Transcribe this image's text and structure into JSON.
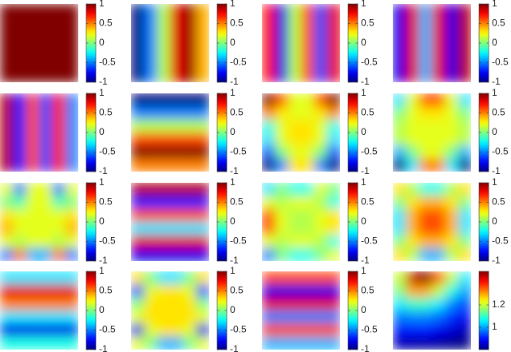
{
  "chart_data": [
    {
      "type": "heatmap",
      "colormap": "jet",
      "clim": [
        -1,
        1
      ],
      "cticks": [
        -1,
        -0.5,
        0,
        0.5,
        1
      ],
      "values": [
        [
          1,
          1,
          1,
          1,
          1,
          1
        ],
        [
          1,
          1,
          1,
          1,
          1,
          1
        ],
        [
          1,
          1,
          1,
          1,
          1,
          1
        ],
        [
          1,
          1,
          1,
          1,
          1,
          1
        ],
        [
          1,
          1,
          1,
          1,
          1,
          1
        ],
        [
          1,
          1,
          1,
          1,
          1,
          1
        ]
      ]
    },
    {
      "type": "heatmap",
      "colormap": "jet",
      "clim": [
        -1,
        1
      ],
      "cticks": [
        -1,
        -0.5,
        0,
        0.5,
        1
      ],
      "values": [
        [
          -1,
          -0.5,
          0.1,
          0.8,
          0.95,
          0.4
        ],
        [
          -1,
          -0.5,
          0.1,
          0.8,
          0.95,
          0.4
        ],
        [
          -1,
          -0.5,
          0.1,
          0.8,
          0.95,
          0.4
        ],
        [
          -1,
          -0.5,
          0.1,
          0.8,
          0.95,
          0.4
        ],
        [
          -1,
          -0.5,
          0.1,
          0.8,
          0.95,
          0.4
        ],
        [
          -1,
          -0.5,
          0.1,
          0.8,
          0.95,
          0.4
        ]
      ]
    },
    {
      "type": "heatmap",
      "colormap": "jet",
      "clim": [
        -1,
        1
      ],
      "cticks": [
        -1,
        -0.5,
        0,
        0.5,
        1
      ],
      "values": [
        [
          0.7,
          -0.8,
          0.1,
          0.6,
          -0.6,
          0.8
        ],
        [
          0.7,
          -0.8,
          0.1,
          0.6,
          -0.6,
          0.8
        ],
        [
          0.7,
          -0.8,
          0.1,
          0.6,
          -0.6,
          0.8
        ],
        [
          0.7,
          -0.8,
          0.1,
          0.6,
          -0.6,
          0.8
        ],
        [
          0.7,
          -0.8,
          0.1,
          0.6,
          -0.6,
          0.8
        ],
        [
          0.7,
          -0.8,
          0.1,
          0.6,
          -0.6,
          0.8
        ]
      ]
    },
    {
      "type": "heatmap",
      "colormap": "jet",
      "clim": [
        -1,
        1
      ],
      "cticks": [
        -1,
        -0.5,
        0,
        0.5,
        1
      ],
      "values": [
        [
          -0.8,
          0.8,
          -0.4,
          0.8,
          -0.8,
          0.9
        ],
        [
          -0.8,
          0.8,
          -0.4,
          0.8,
          -0.8,
          0.9
        ],
        [
          -0.8,
          0.8,
          -0.4,
          0.8,
          -0.8,
          0.9
        ],
        [
          -0.8,
          0.8,
          -0.4,
          0.8,
          -0.8,
          0.9
        ],
        [
          -0.8,
          0.8,
          -0.4,
          0.8,
          -0.8,
          0.9
        ],
        [
          -0.8,
          0.8,
          -0.4,
          0.8,
          -0.8,
          0.9
        ]
      ]
    },
    {
      "type": "heatmap",
      "colormap": "jet",
      "clim": [
        -1,
        1
      ],
      "cticks": [
        -1,
        -0.5,
        0,
        0.5,
        1
      ],
      "values": [
        [
          0.9,
          -0.7,
          0.6,
          -0.6,
          0.7,
          -0.5
        ],
        [
          0.9,
          -0.7,
          0.6,
          -0.6,
          0.7,
          -0.5
        ],
        [
          0.9,
          -0.7,
          0.6,
          -0.6,
          0.7,
          -0.5
        ],
        [
          0.9,
          -0.7,
          0.6,
          -0.6,
          0.7,
          -0.5
        ],
        [
          0.9,
          -0.7,
          0.6,
          -0.6,
          0.7,
          -0.5
        ],
        [
          0.9,
          -0.7,
          0.6,
          -0.6,
          0.7,
          -0.5
        ]
      ]
    },
    {
      "type": "heatmap",
      "colormap": "jet",
      "clim": [
        -1,
        1
      ],
      "cticks": [
        -1,
        -0.5,
        0,
        0.5,
        1
      ],
      "values": [
        [
          -1,
          -1,
          -1,
          -1,
          -1,
          -1
        ],
        [
          -0.5,
          -0.5,
          -0.5,
          -0.5,
          -0.5,
          -0.5
        ],
        [
          0.1,
          0.1,
          0.1,
          0.1,
          0.1,
          0.1
        ],
        [
          0.6,
          0.6,
          0.6,
          0.6,
          0.6,
          0.6
        ],
        [
          1,
          1,
          1,
          1,
          1,
          1
        ],
        [
          0.5,
          0.5,
          0.5,
          0.5,
          0.5,
          0.5
        ]
      ]
    },
    {
      "type": "heatmap",
      "colormap": "jet",
      "clim": [
        -1,
        1
      ],
      "cticks": [
        -1,
        -0.5,
        0,
        0.5,
        1
      ],
      "values": [
        [
          1,
          0.6,
          0.2,
          0.2,
          0.6,
          1
        ],
        [
          0.5,
          0.3,
          0.2,
          0.2,
          0.3,
          0.5
        ],
        [
          -0.2,
          0.2,
          0.3,
          0.3,
          0.2,
          -0.2
        ],
        [
          -0.3,
          0.2,
          0.3,
          0.3,
          0.2,
          -0.3
        ],
        [
          -0.6,
          0,
          0.2,
          0.2,
          0,
          -0.6
        ],
        [
          -1,
          -0.5,
          0.3,
          0.3,
          -0.5,
          -1
        ]
      ]
    },
    {
      "type": "heatmap",
      "colormap": "jet",
      "clim": [
        -1,
        1
      ],
      "cticks": [
        -1,
        -0.5,
        0,
        0.5,
        1
      ],
      "values": [
        [
          -0.3,
          0.2,
          0.6,
          0.6,
          0.2,
          -0.3
        ],
        [
          0,
          0.2,
          0.3,
          0.3,
          0.2,
          0
        ],
        [
          0.1,
          0.2,
          0.2,
          0.2,
          0.2,
          0.1
        ],
        [
          0.1,
          0.2,
          0.2,
          0.2,
          0.2,
          0.1
        ],
        [
          -0.4,
          0,
          0.2,
          0.2,
          0,
          -0.4
        ],
        [
          -1,
          -0.3,
          0.5,
          0.5,
          -0.3,
          -1
        ]
      ]
    },
    {
      "type": "heatmap",
      "colormap": "jet",
      "clim": [
        -1,
        1
      ],
      "cticks": [
        -1,
        -0.5,
        0,
        0.5,
        1
      ],
      "values": [
        [
          0.2,
          -0.5,
          0.2,
          0.2,
          -0.5,
          0.2
        ],
        [
          0,
          -0.1,
          0.2,
          0.2,
          -0.1,
          0
        ],
        [
          0.3,
          0.2,
          0.2,
          0.2,
          0.2,
          0.3
        ],
        [
          0.4,
          0.2,
          0.2,
          0.2,
          0.2,
          0.4
        ],
        [
          0.2,
          0.1,
          0.2,
          0.2,
          0.1,
          0.2
        ],
        [
          -0.5,
          0.5,
          -0.4,
          -0.4,
          0.5,
          -0.5
        ]
      ]
    },
    {
      "type": "heatmap",
      "colormap": "jet",
      "clim": [
        -1,
        1
      ],
      "cticks": [
        -1,
        -0.5,
        0,
        0.5,
        1
      ],
      "values": [
        [
          0.9,
          0.9,
          0.9,
          0.9,
          0.9,
          0.9
        ],
        [
          -0.7,
          -0.7,
          -0.7,
          -0.7,
          -0.7,
          -0.7
        ],
        [
          0.6,
          0.6,
          0.6,
          0.6,
          0.6,
          0.6
        ],
        [
          -0.3,
          -0.3,
          -0.3,
          -0.3,
          -0.3,
          -0.3
        ],
        [
          0.8,
          0.8,
          0.8,
          0.8,
          0.8,
          0.8
        ],
        [
          -0.8,
          -0.8,
          -0.8,
          -0.8,
          -0.8,
          -0.8
        ]
      ]
    },
    {
      "type": "heatmap",
      "colormap": "jet",
      "clim": [
        -1,
        1
      ],
      "cticks": [
        -1,
        -0.5,
        0,
        0.5,
        1
      ],
      "values": [
        [
          -0.3,
          0,
          -0.2,
          -0.2,
          0.2,
          0
        ],
        [
          0.2,
          0.1,
          0.2,
          0.2,
          0.1,
          -0.2
        ],
        [
          0.6,
          0.2,
          0.1,
          0.1,
          0.2,
          0.3
        ],
        [
          0.6,
          0.2,
          0.1,
          0.1,
          0.2,
          0.3
        ],
        [
          0.2,
          0.1,
          0.2,
          0.2,
          0.1,
          -0.2
        ],
        [
          -0.5,
          0,
          -0.2,
          -0.2,
          0,
          0.2
        ]
      ]
    },
    {
      "type": "heatmap",
      "colormap": "jet",
      "clim": [
        -1,
        1
      ],
      "cticks": [
        -1,
        -0.5,
        0,
        0.5,
        1
      ],
      "values": [
        [
          0.3,
          0.1,
          -0.2,
          -0.2,
          0.1,
          0.3
        ],
        [
          0,
          0.3,
          0.4,
          0.4,
          0.3,
          0
        ],
        [
          -0.3,
          0.4,
          0.6,
          0.6,
          0.4,
          -0.3
        ],
        [
          -0.3,
          0.4,
          0.6,
          0.6,
          0.4,
          -0.3
        ],
        [
          0,
          0.3,
          0.4,
          0.4,
          0.3,
          0
        ],
        [
          0.3,
          0.1,
          -0.4,
          -0.4,
          0.1,
          0.3
        ]
      ]
    },
    {
      "type": "heatmap",
      "colormap": "jet",
      "clim": [
        -1,
        1
      ],
      "cticks": [
        -1,
        -0.5,
        0,
        0.5,
        1
      ],
      "values": [
        [
          -0.3,
          -0.3,
          -0.3,
          -0.3,
          -0.3,
          -0.3
        ],
        [
          0.8,
          0.8,
          0.8,
          0.8,
          0.8,
          0.8
        ],
        [
          0.5,
          0.5,
          0.5,
          0.5,
          0.5,
          0.5
        ],
        [
          -0.3,
          -0.3,
          -0.3,
          -0.3,
          -0.3,
          -0.3
        ],
        [
          -0.8,
          -0.8,
          -0.8,
          -0.8,
          -0.8,
          -0.8
        ],
        [
          -0.2,
          -0.2,
          -0.2,
          -0.2,
          -0.2,
          -0.2
        ]
      ]
    },
    {
      "type": "heatmap",
      "colormap": "jet",
      "clim": [
        -1,
        1
      ],
      "cticks": [
        -1,
        -0.5,
        0,
        0.5,
        1
      ],
      "values": [
        [
          0.3,
          0,
          -0.3,
          -0.3,
          0,
          0.3
        ],
        [
          -0.6,
          0.2,
          0.3,
          0.3,
          0.2,
          -0.6
        ],
        [
          0,
          0.3,
          0.3,
          0.3,
          0.3,
          0
        ],
        [
          0.2,
          0.3,
          0.3,
          0.3,
          0.3,
          0.2
        ],
        [
          -0.8,
          0.2,
          0.3,
          0.3,
          0.2,
          -0.8
        ],
        [
          0.2,
          0,
          -0.4,
          -0.4,
          0,
          0.2
        ]
      ]
    },
    {
      "type": "heatmap",
      "colormap": "jet",
      "clim": [
        -1,
        1
      ],
      "cticks": [
        -1,
        -0.5,
        0,
        0.5,
        1
      ],
      "values": [
        [
          0.6,
          0.6,
          0.6,
          0.6,
          0.6,
          0.6
        ],
        [
          -0.8,
          -0.8,
          -0.8,
          -0.8,
          -0.8,
          -0.8
        ],
        [
          0.8,
          0.8,
          0.8,
          0.8,
          0.8,
          0.8
        ],
        [
          -0.5,
          -0.5,
          -0.5,
          -0.5,
          -0.5,
          -0.5
        ],
        [
          0.6,
          0.6,
          0.6,
          0.6,
          0.6,
          0.6
        ],
        [
          -0.4,
          -0.4,
          -0.4,
          -0.4,
          -0.4,
          -0.4
        ]
      ]
    },
    {
      "type": "heatmap",
      "colormap": "jet",
      "clim": [
        0.8,
        1.5
      ],
      "cticks": [
        1,
        1.2
      ],
      "values": [
        [
          1.2,
          1.45,
          1.5,
          1.35,
          1.2,
          1.05
        ],
        [
          1.15,
          1.3,
          1.3,
          1.2,
          1.08,
          1.0
        ],
        [
          1.05,
          1.1,
          1.1,
          1.05,
          0.98,
          0.94
        ],
        [
          0.97,
          0.98,
          0.98,
          0.96,
          0.92,
          0.88
        ],
        [
          0.9,
          0.9,
          0.9,
          0.88,
          0.86,
          0.84
        ],
        [
          0.84,
          0.83,
          0.83,
          0.82,
          0.81,
          0.8
        ]
      ]
    }
  ]
}
